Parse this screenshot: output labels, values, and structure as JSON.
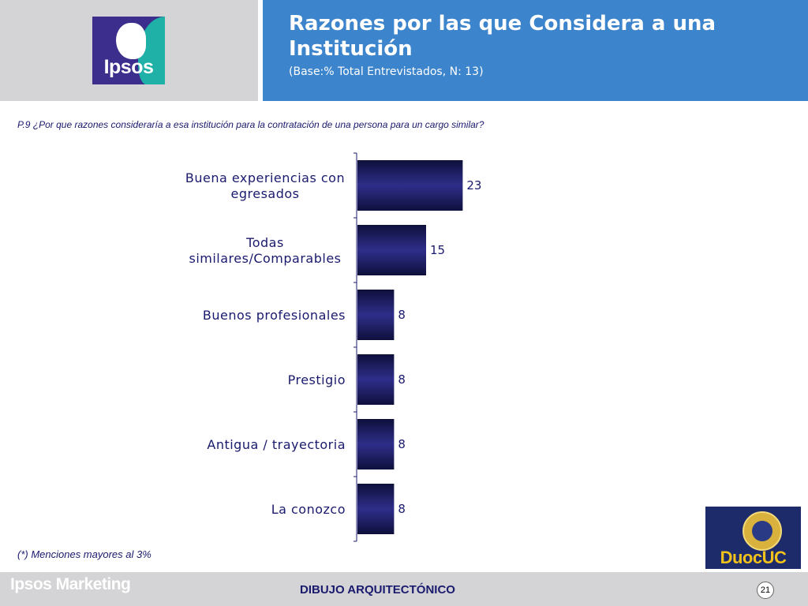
{
  "header": {
    "logo_text": "Ipsos",
    "title": "Razones por las que Considera a una Institución",
    "subtitle": "(Base:% Total Entrevistados, N: 13)"
  },
  "question": "P.9 ¿Por que razones consideraría a esa institución para la contratación de una persona para un cargo similar?",
  "note": "(*) Menciones mayores al 3%",
  "chart_data": {
    "type": "bar",
    "orientation": "horizontal",
    "categories": [
      "Buena experiencias con egresados",
      "Todas similares/Comparables",
      "Buenos profesionales",
      "Prestigio",
      "Antigua / trayectoria",
      "La conozco"
    ],
    "values": [
      23,
      15,
      8,
      8,
      8,
      8
    ],
    "title": "",
    "xlabel": "",
    "ylabel": "",
    "grid": false,
    "bar_color": "#23236e"
  },
  "footer": {
    "brand": "Ipsos Marketing",
    "center_text": "DIBUJO ARQUITECTÓNICO",
    "page_number": "21"
  },
  "client_logo": {
    "text": "DuocUC"
  },
  "colors": {
    "header_blue": "#3c84cc",
    "header_gray": "#d4d4d6",
    "text_navy": "#1a1a6e",
    "bar": "#23236e"
  }
}
